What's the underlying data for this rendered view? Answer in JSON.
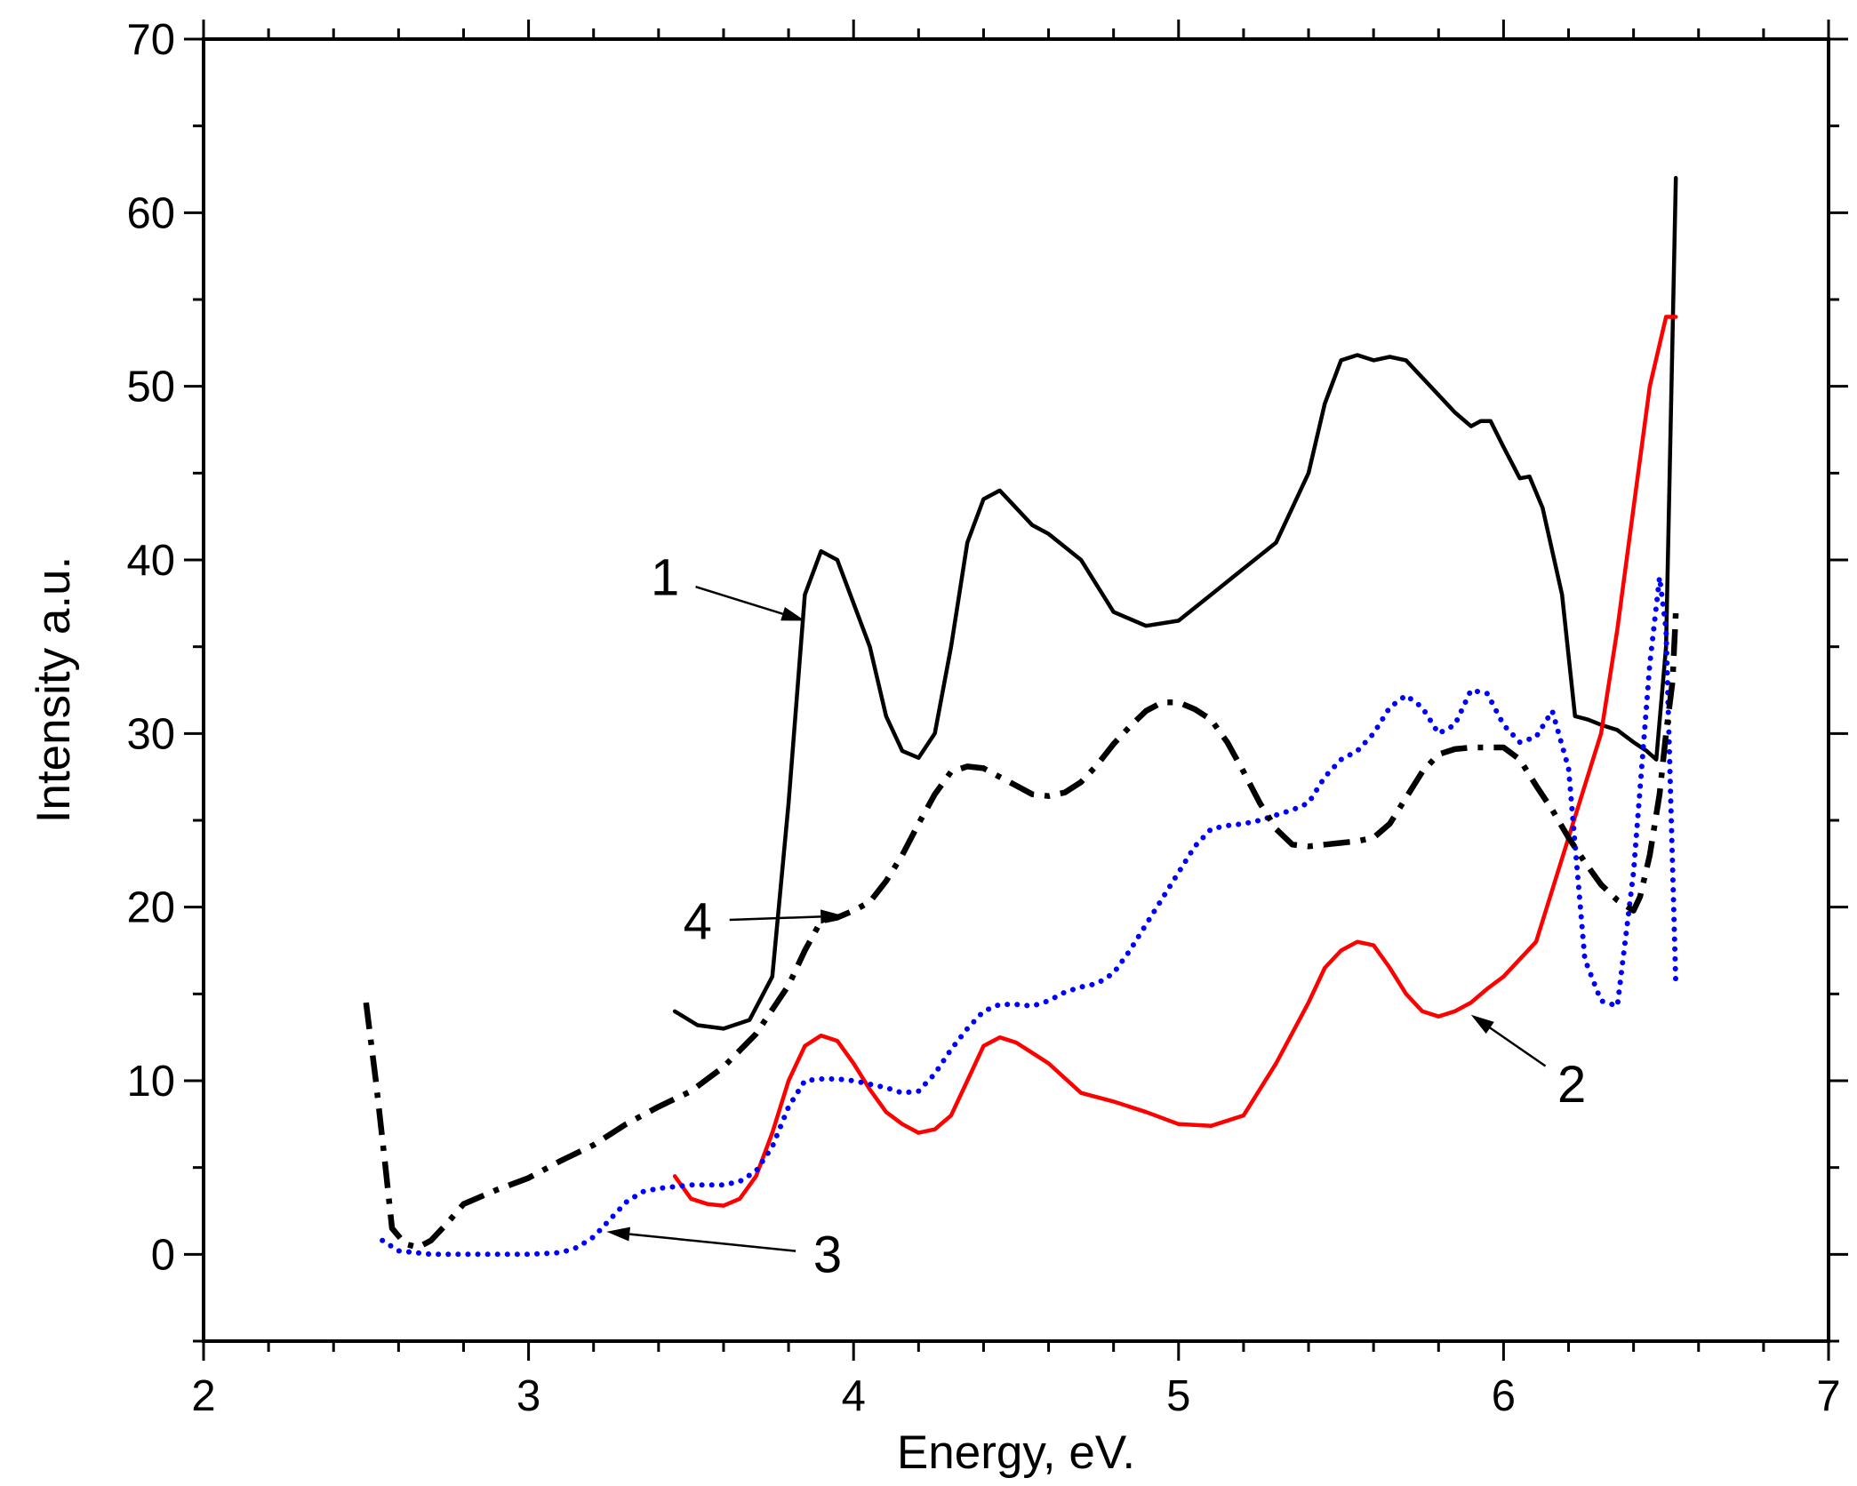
{
  "chart_data": {
    "type": "line",
    "title": "",
    "xlabel": "Energy, eV.",
    "ylabel": "Intensity a.u.",
    "xlim": [
      2,
      7
    ],
    "ylim": [
      -5,
      70
    ],
    "x_ticks": [
      2,
      3,
      4,
      5,
      6,
      7
    ],
    "x_tick_labels": [
      "2",
      "3",
      "4",
      "5",
      "6",
      "7"
    ],
    "x_minor_step": 0.2,
    "y_ticks": [
      0,
      10,
      20,
      30,
      40,
      50,
      60,
      70
    ],
    "y_tick_labels": [
      "0",
      "10",
      "20",
      "30",
      "40",
      "50",
      "60",
      "70"
    ],
    "y_minor_step": 5,
    "grid": false,
    "legend": "none",
    "series": [
      {
        "name": "1",
        "color": "#000000",
        "style": "solid",
        "x": [
          3.45,
          3.52,
          3.6,
          3.68,
          3.75,
          3.8,
          3.85,
          3.9,
          3.95,
          4.0,
          4.05,
          4.1,
          4.15,
          4.2,
          4.25,
          4.3,
          4.35,
          4.4,
          4.45,
          4.5,
          4.55,
          4.6,
          4.7,
          4.8,
          4.9,
          5.0,
          5.1,
          5.2,
          5.3,
          5.4,
          5.45,
          5.5,
          5.55,
          5.6,
          5.65,
          5.7,
          5.75,
          5.8,
          5.85,
          5.9,
          5.93,
          5.96,
          6.0,
          6.05,
          6.08,
          6.12,
          6.18,
          6.22,
          6.26,
          6.3,
          6.35,
          6.4,
          6.44,
          6.47,
          6.5,
          6.53
        ],
        "y": [
          14,
          13.2,
          13,
          13.5,
          16,
          26,
          38,
          40.5,
          40,
          37.5,
          35,
          31,
          29,
          28.6,
          30,
          35,
          41,
          43.5,
          44,
          43,
          42,
          41.5,
          40,
          37,
          36.2,
          36.5,
          38,
          39.5,
          41,
          45,
          49,
          51.5,
          51.8,
          51.5,
          51.7,
          51.5,
          50.5,
          49.5,
          48.5,
          47.7,
          48,
          48,
          46.5,
          44.7,
          44.8,
          43,
          38,
          31,
          30.8,
          30.5,
          30.2,
          29.5,
          29,
          28.5,
          35,
          62
        ]
      },
      {
        "name": "2",
        "color": "#ff0000",
        "style": "solid",
        "x": [
          3.45,
          3.5,
          3.55,
          3.6,
          3.65,
          3.7,
          3.75,
          3.8,
          3.85,
          3.9,
          3.95,
          4.0,
          4.05,
          4.1,
          4.15,
          4.2,
          4.25,
          4.3,
          4.35,
          4.4,
          4.45,
          4.5,
          4.55,
          4.6,
          4.7,
          4.8,
          4.9,
          5.0,
          5.1,
          5.2,
          5.3,
          5.4,
          5.45,
          5.5,
          5.55,
          5.6,
          5.65,
          5.7,
          5.75,
          5.8,
          5.85,
          5.9,
          5.95,
          6.0,
          6.1,
          6.2,
          6.3,
          6.35,
          6.4,
          6.45,
          6.5,
          6.53
        ],
        "y": [
          4.5,
          3.2,
          2.9,
          2.8,
          3.2,
          4.5,
          7,
          10,
          12,
          12.6,
          12.3,
          11,
          9.5,
          8.2,
          7.5,
          7,
          7.2,
          8,
          10,
          12,
          12.5,
          12.2,
          11.6,
          11,
          9.3,
          8.8,
          8.2,
          7.5,
          7.4,
          8,
          11,
          14.5,
          16.5,
          17.5,
          18,
          17.8,
          16.5,
          15,
          14,
          13.7,
          14,
          14.5,
          15.3,
          16,
          18,
          24,
          30,
          36,
          43,
          50,
          54,
          54
        ]
      },
      {
        "name": "3",
        "color": "#0000ff",
        "style": "dotted",
        "x": [
          2.55,
          2.6,
          2.7,
          2.8,
          2.9,
          3.0,
          3.1,
          3.15,
          3.2,
          3.25,
          3.3,
          3.35,
          3.4,
          3.45,
          3.5,
          3.55,
          3.6,
          3.65,
          3.7,
          3.75,
          3.8,
          3.85,
          3.9,
          3.95,
          4.0,
          4.05,
          4.1,
          4.15,
          4.2,
          4.25,
          4.3,
          4.35,
          4.4,
          4.45,
          4.5,
          4.55,
          4.6,
          4.65,
          4.7,
          4.75,
          4.8,
          4.85,
          4.9,
          4.95,
          5.0,
          5.05,
          5.1,
          5.15,
          5.2,
          5.25,
          5.3,
          5.35,
          5.4,
          5.45,
          5.5,
          5.55,
          5.6,
          5.65,
          5.7,
          5.75,
          5.8,
          5.85,
          5.9,
          5.95,
          6.0,
          6.05,
          6.1,
          6.15,
          6.2,
          6.25,
          6.3,
          6.35,
          6.4,
          6.45,
          6.48,
          6.5,
          6.53
        ],
        "y": [
          0.8,
          0.2,
          0,
          0,
          0,
          0,
          0.1,
          0.4,
          1.0,
          2.0,
          3.0,
          3.6,
          3.8,
          3.9,
          4.0,
          4.0,
          4.0,
          4.2,
          4.8,
          6.2,
          8.5,
          10,
          10.1,
          10.1,
          10,
          9.8,
          9.6,
          9.3,
          9.4,
          10.4,
          11.8,
          13,
          14,
          14.4,
          14.4,
          14.3,
          14.6,
          15.1,
          15.4,
          15.6,
          16.2,
          17.5,
          19,
          20.5,
          22,
          23.5,
          24.5,
          24.7,
          24.8,
          25,
          25.3,
          25.6,
          26,
          27.5,
          28.5,
          29,
          30,
          31.5,
          32.2,
          31.5,
          30,
          30.5,
          32.5,
          32.3,
          30.5,
          29.5,
          29.8,
          31.3,
          28,
          17,
          14.6,
          14.3,
          22,
          34,
          39,
          36,
          15.5
        ]
      },
      {
        "name": "4",
        "color": "#000000",
        "style": "dash-dot",
        "x": [
          2.5,
          2.53,
          2.56,
          2.58,
          2.62,
          2.66,
          2.7,
          2.75,
          2.8,
          2.9,
          3.0,
          3.1,
          3.2,
          3.3,
          3.4,
          3.5,
          3.6,
          3.7,
          3.8,
          3.85,
          3.9,
          3.95,
          4.0,
          4.05,
          4.1,
          4.15,
          4.2,
          4.25,
          4.3,
          4.35,
          4.4,
          4.45,
          4.5,
          4.55,
          4.6,
          4.65,
          4.7,
          4.75,
          4.8,
          4.85,
          4.9,
          4.95,
          5.0,
          5.05,
          5.1,
          5.15,
          5.2,
          5.25,
          5.3,
          5.35,
          5.4,
          5.45,
          5.5,
          5.55,
          5.6,
          5.65,
          5.7,
          5.75,
          5.8,
          5.85,
          5.9,
          5.95,
          6.0,
          6.05,
          6.1,
          6.15,
          6.2,
          6.25,
          6.3,
          6.35,
          6.4,
          6.42,
          6.45,
          6.48,
          6.5,
          6.52,
          6.53
        ],
        "y": [
          14.5,
          10,
          5,
          1.5,
          0.6,
          0.4,
          0.8,
          1.8,
          2.9,
          3.7,
          4.4,
          5.4,
          6.3,
          7.5,
          8.5,
          9.4,
          10.8,
          12.7,
          15.5,
          17.5,
          19.2,
          19.4,
          19.8,
          20.3,
          21.5,
          23,
          24.8,
          26.5,
          27.8,
          28.1,
          28,
          27.5,
          27,
          26.5,
          26.4,
          26.6,
          27.2,
          28.2,
          29.4,
          30.4,
          31.3,
          31.8,
          31.8,
          31.4,
          30.8,
          29.5,
          27.8,
          26,
          24.5,
          23.6,
          23.5,
          23.6,
          23.7,
          23.8,
          24,
          24.8,
          26.3,
          27.8,
          28.8,
          29.1,
          29.2,
          29.2,
          29.2,
          28.5,
          27,
          25.6,
          24,
          22.6,
          21.3,
          20.4,
          19.8,
          20.6,
          23,
          26.5,
          30,
          33,
          37
        ]
      }
    ],
    "annotations": [
      {
        "text": "1",
        "series": "1",
        "x": 3.85,
        "y": 36.5
      },
      {
        "text": "2",
        "series": "2",
        "x": 5.9,
        "y": 13.8
      },
      {
        "text": "3",
        "series": "3",
        "x": 3.24,
        "y": 1.3
      },
      {
        "text": "4",
        "series": "4",
        "x": 3.97,
        "y": 19.5
      }
    ]
  }
}
